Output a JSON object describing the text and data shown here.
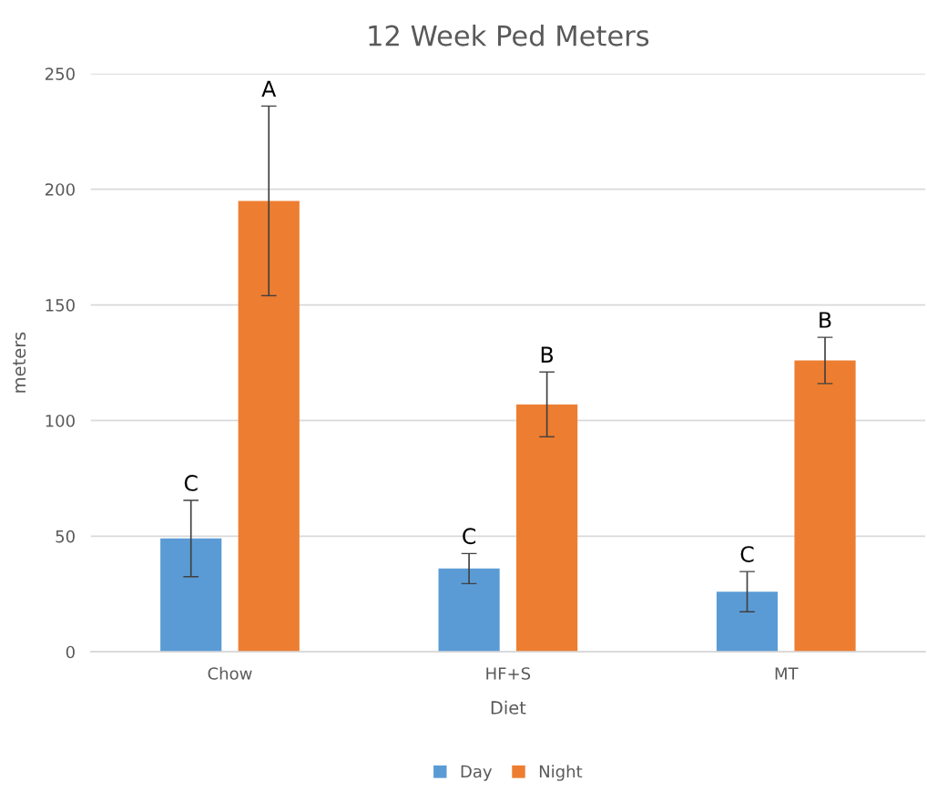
{
  "chart_data": {
    "type": "bar",
    "title": "12 Week Ped Meters",
    "xlabel": "Diet",
    "ylabel": "meters",
    "categories": [
      "Chow",
      "HF+S",
      "MT"
    ],
    "series": [
      {
        "name": "Day",
        "color": "#5b9bd5",
        "values": [
          49,
          36,
          26
        ],
        "errors": [
          16.5,
          6.5,
          8.7
        ]
      },
      {
        "name": "Night",
        "color": "#ed7d31",
        "values": [
          195,
          107,
          126
        ],
        "errors": [
          41,
          14,
          10
        ]
      }
    ],
    "annotations": [
      "C",
      "A",
      "C",
      "B",
      "C",
      "B"
    ],
    "ylim": [
      0,
      250
    ],
    "yticks": [
      0,
      50,
      100,
      150,
      200,
      250
    ],
    "grid": "y",
    "legend": "bottom"
  }
}
